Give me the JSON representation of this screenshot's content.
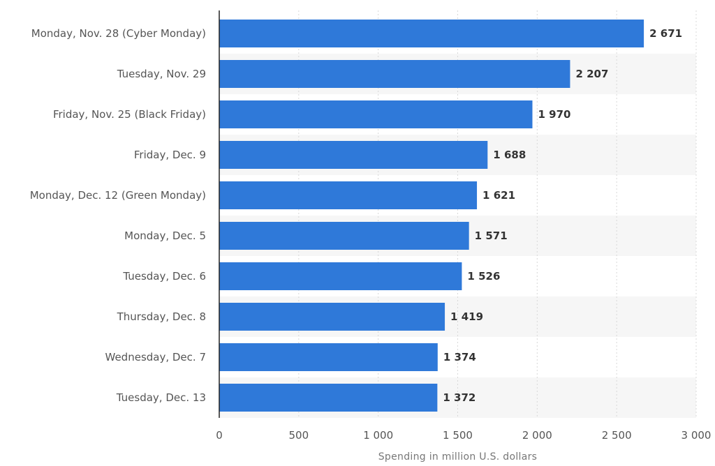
{
  "chart_data": {
    "type": "bar",
    "orientation": "horizontal",
    "title": "",
    "xlabel": "Spending in million U.S. dollars",
    "ylabel": "",
    "categories": [
      "Monday, Nov. 28 (Cyber Monday)",
      "Tuesday, Nov. 29",
      "Friday, Nov. 25 (Black Friday)",
      "Friday, Dec. 9",
      "Monday, Dec. 12 (Green Monday)",
      "Monday, Dec. 5",
      "Tuesday, Dec. 6",
      "Thursday, Dec. 8",
      "Wednesday, Dec. 7",
      "Tuesday, Dec. 13"
    ],
    "values": [
      2671,
      2207,
      1970,
      1688,
      1621,
      1571,
      1526,
      1419,
      1374,
      1372
    ],
    "value_labels": [
      "2 671",
      "2 207",
      "1 970",
      "1 688",
      "1 621",
      "1 571",
      "1 526",
      "1 419",
      "1 374",
      "1 372"
    ],
    "xlim": [
      0,
      3000
    ],
    "xticks": [
      0,
      500,
      1000,
      1500,
      2000,
      2500,
      3000
    ],
    "xtick_labels": [
      "0",
      "500",
      "1 000",
      "1 500",
      "2 000",
      "2 500",
      "3 000"
    ],
    "grid": true,
    "grid_style": "dotted-vertical",
    "alternating_row_bands": true,
    "legend": "none",
    "colors": {
      "bar": "#2f79d9",
      "band": "#f6f6f6",
      "grid": "#d8d8d8",
      "axis": "#222222"
    }
  }
}
